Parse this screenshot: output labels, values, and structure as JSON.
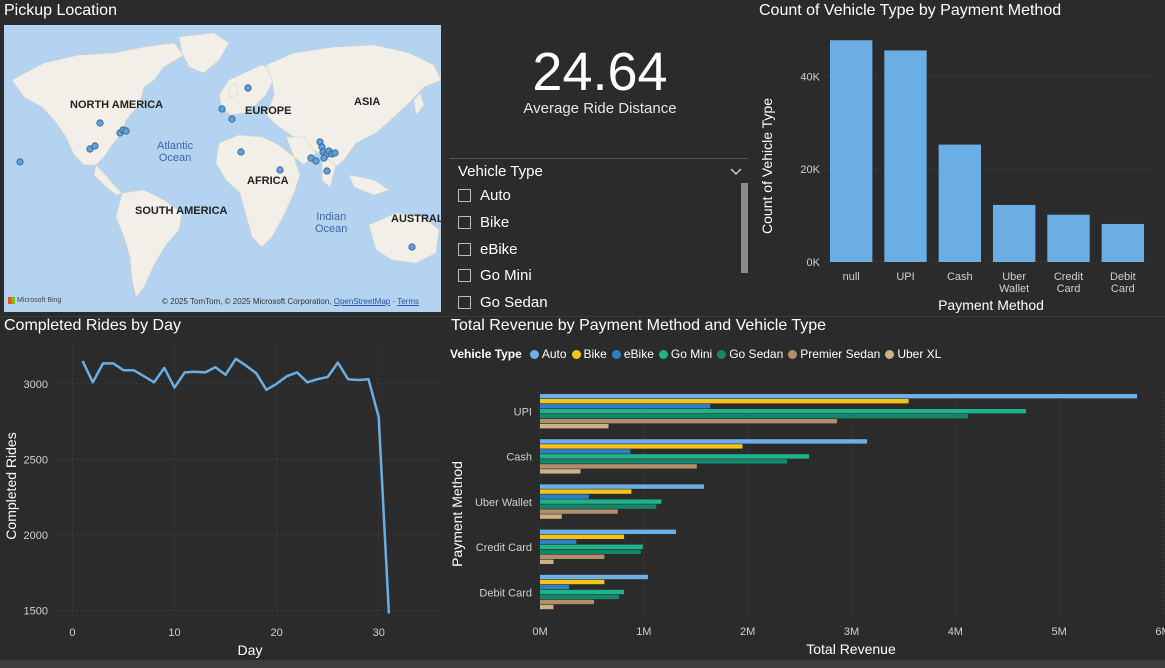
{
  "map": {
    "title": "Pickup Location",
    "labels": {
      "north_america": "NORTH AMERICA",
      "europe": "EUROPE",
      "asia": "ASIA",
      "africa": "AFRICA",
      "south_america": "SOUTH AMERICA",
      "australia": "AUSTRALI",
      "atlantic": "Atlantic\nOcean",
      "indian": "Indian\nOcean"
    },
    "bing": "Microsoft Bing",
    "credit_prefix": "© 2025 TomTom, © 2025 Microsoft Corporation,",
    "credit_osm": "OpenStreetMap",
    "credit_sep": "·",
    "credit_terms": "Terms"
  },
  "kpi": {
    "value": "24.64",
    "label": "Average Ride Distance"
  },
  "slicer": {
    "title": "Vehicle Type",
    "items": [
      "Auto",
      "Bike",
      "eBike",
      "Go Mini",
      "Go Sedan"
    ]
  },
  "colors": {
    "auto": "#6cb0e6",
    "bike": "#f6c21c",
    "ebike": "#2e80c4",
    "go_mini": "#1fb38a",
    "go_sedan": "#14876a",
    "premier_sedan": "#b08e6b",
    "uber_xl": "#c9b384",
    "bar": "#6aaee3",
    "line": "#6aaee3"
  },
  "bar_chart": {
    "title": "Count of Vehicle Type by Payment Method",
    "chart_data": {
      "type": "bar",
      "categories": [
        "null",
        "UPI",
        "Cash",
        "Uber\nWallet",
        "Credit\nCard",
        "Debit\nCard"
      ],
      "values": [
        47800,
        45600,
        25300,
        12300,
        10200,
        8200
      ],
      "xlabel": "Payment Method",
      "ylabel": "Count of Vehicle Type",
      "yticks": [
        "0K",
        "20K",
        "40K"
      ],
      "ylim": [
        0,
        50000
      ]
    }
  },
  "line_chart": {
    "title": "Completed Rides by Day",
    "chart_data": {
      "type": "line",
      "x": [
        1,
        2,
        3,
        4,
        5,
        6,
        7,
        8,
        9,
        10,
        11,
        12,
        13,
        14,
        15,
        16,
        17,
        18,
        19,
        20,
        21,
        22,
        23,
        24,
        25,
        26,
        27,
        28,
        29,
        30,
        31
      ],
      "y": [
        3150,
        3010,
        3135,
        3135,
        3090,
        3090,
        3050,
        3010,
        3105,
        2975,
        3075,
        3080,
        3075,
        3110,
        3060,
        3165,
        3120,
        3070,
        2960,
        3000,
        3050,
        3075,
        3010,
        3030,
        3045,
        3140,
        3030,
        3025,
        3030,
        2780,
        1480
      ],
      "xlabel": "Day",
      "ylabel": "Completed Rides",
      "xticks": [
        "0",
        "10",
        "20",
        "30"
      ],
      "yticks": [
        "1500",
        "2000",
        "2500",
        "3000"
      ],
      "xlim": [
        -2,
        36
      ],
      "ylim": [
        1450,
        3250
      ]
    }
  },
  "cluster_chart": {
    "title": "Total Revenue by Payment Method and Vehicle Type",
    "legend_title": "Vehicle Type",
    "chart_data": {
      "type": "bar",
      "orientation": "horizontal",
      "categories": [
        "UPI",
        "Cash",
        "Uber Wallet",
        "Credit Card",
        "Debit Card"
      ],
      "series": [
        {
          "name": "Auto",
          "values": [
            5.75,
            3.15,
            1.58,
            1.31,
            1.04
          ]
        },
        {
          "name": "Bike",
          "values": [
            3.55,
            1.95,
            0.88,
            0.81,
            0.62
          ]
        },
        {
          "name": "eBike",
          "values": [
            1.64,
            0.87,
            0.47,
            0.35,
            0.28
          ]
        },
        {
          "name": "Go Mini",
          "values": [
            4.68,
            2.59,
            1.17,
            0.99,
            0.81
          ]
        },
        {
          "name": "Go Sedan",
          "values": [
            4.12,
            2.38,
            1.12,
            0.97,
            0.76
          ]
        },
        {
          "name": "Premier Sedan",
          "values": [
            2.86,
            1.51,
            0.75,
            0.62,
            0.52
          ]
        },
        {
          "name": "Uber XL",
          "values": [
            0.66,
            0.39,
            0.21,
            0.13,
            0.13
          ]
        }
      ],
      "xlabel": "Total Revenue",
      "ylabel": "Payment Method",
      "xticks": [
        "0M",
        "1M",
        "2M",
        "3M",
        "4M",
        "5M",
        "6M"
      ],
      "xlim": [
        0,
        6
      ]
    }
  }
}
